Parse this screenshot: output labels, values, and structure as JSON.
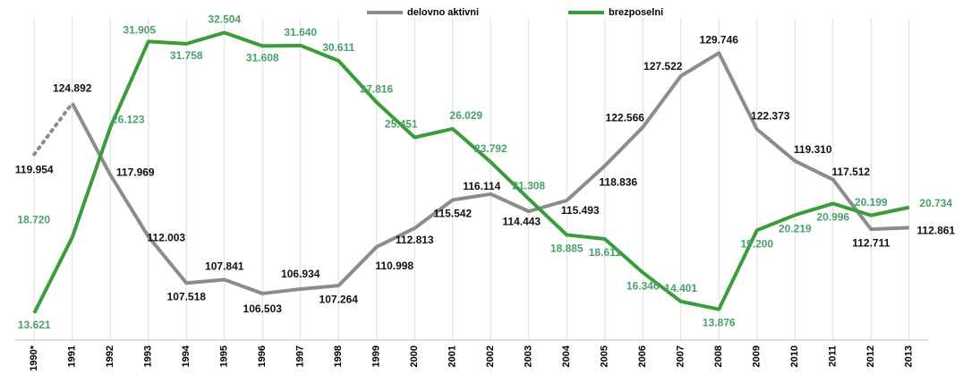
{
  "chart_data": {
    "type": "line",
    "categories": [
      "1990*",
      "1991",
      "1992",
      "1993",
      "1994",
      "1995",
      "1996",
      "1997",
      "1998",
      "1999",
      "2000",
      "2001",
      "2002",
      "2003",
      "2004",
      "2005",
      "2006",
      "2007",
      "2008",
      "2009",
      "2010",
      "2011",
      "2012",
      "2013"
    ],
    "series": [
      {
        "name": "delovno aktivni",
        "color": "#8c8c8c",
        "values": [
          119.954,
          124.892,
          117.969,
          112.003,
          107.518,
          107.841,
          106.503,
          106.934,
          107.264,
          110.998,
          112.813,
          115.542,
          116.114,
          114.443,
          115.493,
          118.836,
          122.566,
          127.522,
          129.746,
          122.373,
          119.31,
          117.512,
          112.711,
          112.861
        ],
        "value_labels": [
          "119.954",
          "124.892",
          "117.969",
          "112.003",
          "107.518",
          "107.841",
          "106.503",
          "106.934",
          "107.264",
          "110.998",
          "112.813",
          "115.542",
          "116.114",
          "114.443",
          "115.493",
          "118.836",
          "122.566",
          "127.522",
          "129.746",
          "122.373",
          "119.310",
          "117.512",
          "112.711",
          "112.861"
        ]
      },
      {
        "name": "brezposelni",
        "color": "#3a9d3a",
        "axis": "y2",
        "values": [
          13.621,
          18.72,
          26.123,
          31.905,
          31.758,
          32.504,
          31.608,
          31.64,
          30.611,
          27.816,
          25.451,
          26.029,
          23.792,
          21.308,
          18.885,
          18.611,
          16.346,
          14.401,
          13.876,
          19.2,
          20.219,
          20.996,
          20.199,
          20.734
        ],
        "value_labels": [
          "13.621",
          "18.720",
          "26.123",
          "31.905",
          "31.758",
          "32.504",
          "31.608",
          "31.640",
          "30.611",
          "27.816",
          "25.451",
          "26.029",
          "23.792",
          "21.308",
          "18.885",
          "18.611",
          "16.346",
          "14.401",
          "13.876",
          "19.200",
          "20.219",
          "20.996",
          "20.199",
          "20.734"
        ]
      }
    ],
    "ylim": [
      102,
      134
    ],
    "y2lim": [
      11.8,
      34.1
    ],
    "legend": "top"
  }
}
